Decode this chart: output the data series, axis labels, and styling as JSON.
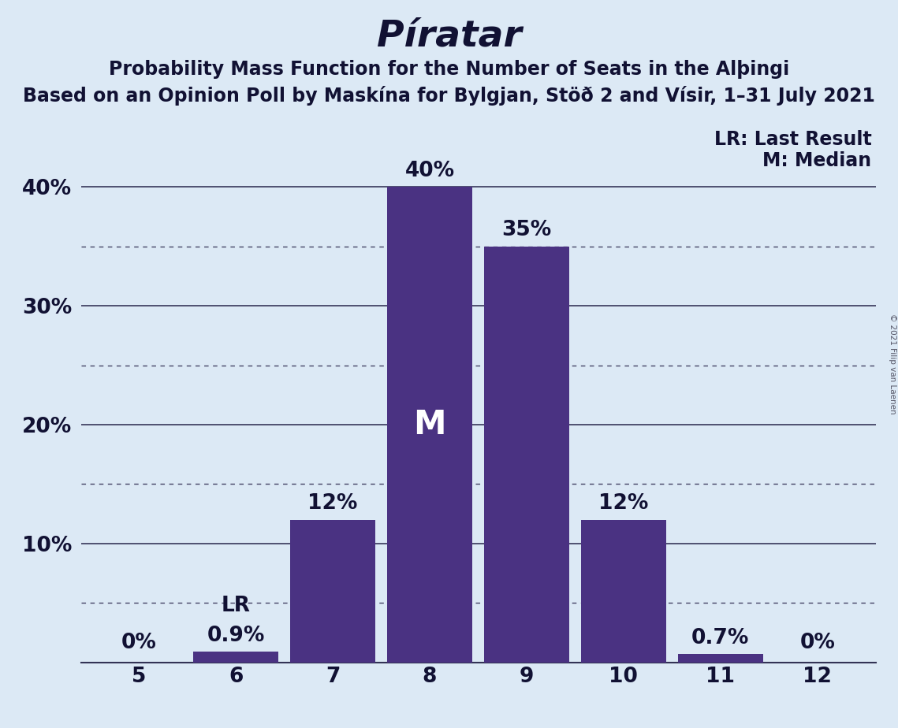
{
  "title": "Píratar",
  "subtitle1": "Probability Mass Function for the Number of Seats in the Alþingi",
  "subtitle2": "Based on an Opinion Poll by Maskína for Bylgjan, Stöð 2 and Vísir, 1–31 July 2021",
  "copyright": "© 2021 Filip van Laenen",
  "categories": [
    5,
    6,
    7,
    8,
    9,
    10,
    11,
    12
  ],
  "values": [
    0.0,
    0.9,
    12.0,
    40.0,
    35.0,
    12.0,
    0.7,
    0.0
  ],
  "labels": [
    "0%",
    "0.9%",
    "12%",
    "40%",
    "35%",
    "12%",
    "0.7%",
    "0%"
  ],
  "bar_color": "#4a3282",
  "background_color": "#dce9f5",
  "text_color": "#111133",
  "median_seat": 8,
  "lr_seat": 6,
  "legend_lr": "LR: Last Result",
  "legend_m": "M: Median",
  "ytick_labels": [
    "10%",
    "20%",
    "30%",
    "40%"
  ],
  "ytick_values": [
    10,
    20,
    30,
    40
  ],
  "ylim": [
    0,
    45
  ],
  "xlim": [
    4.4,
    12.6
  ],
  "grid_dotted_levels": [
    5,
    15,
    25,
    35
  ],
  "solid_grid_levels": [
    10,
    20,
    30,
    40
  ],
  "title_fontsize": 34,
  "subtitle_fontsize": 17,
  "label_fontsize": 19,
  "tick_fontsize": 19,
  "legend_fontsize": 17,
  "m_label_fontsize": 30,
  "lr_label_fontsize": 19
}
